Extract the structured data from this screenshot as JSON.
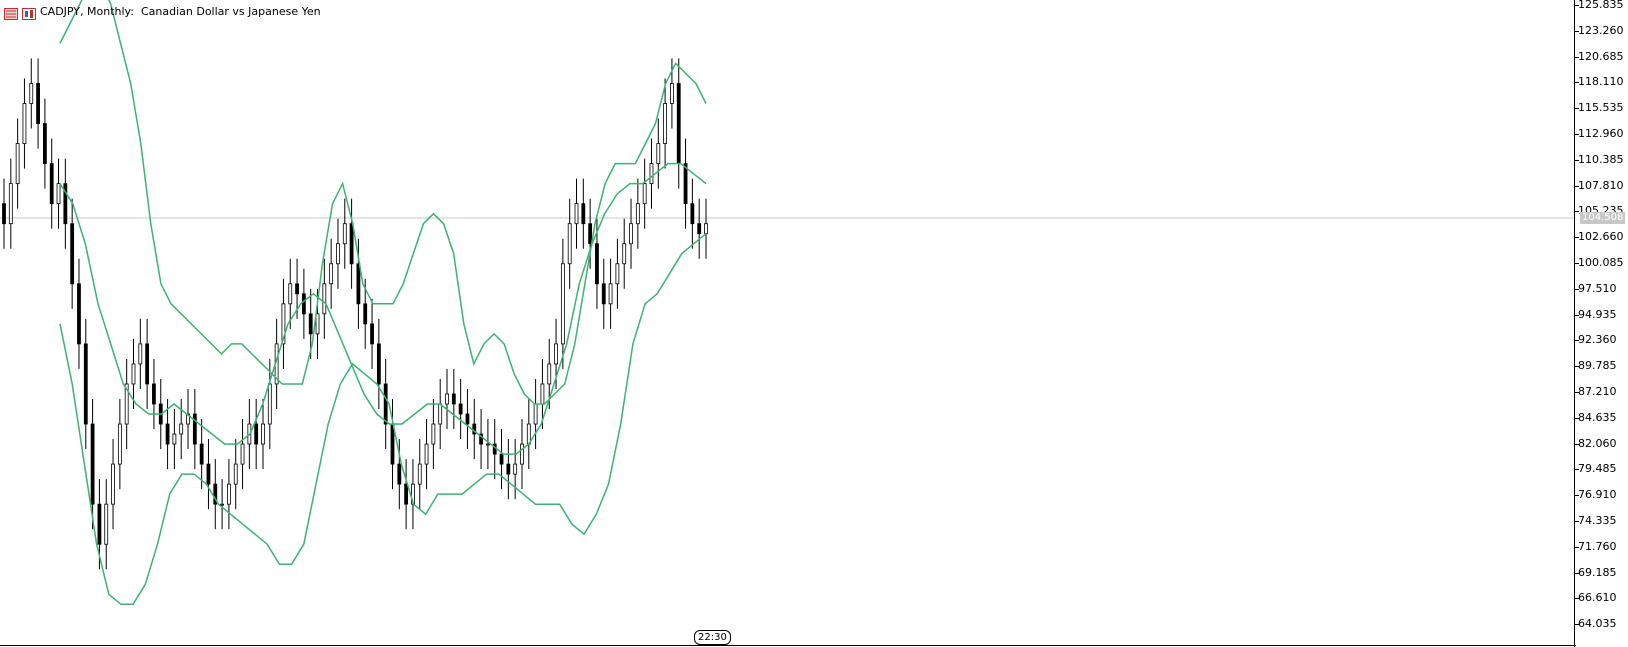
{
  "header": {
    "title": "CADJPY, Monthly:  Canadian Dollar vs Japanese Yen",
    "icons": [
      "data-window-icon",
      "chart-symbol-icon"
    ]
  },
  "price_axis": {
    "labels": [
      "125.835",
      "123.260",
      "120.685",
      "118.110",
      "115.535",
      "112.960",
      "110.385",
      "107.810",
      "105.235",
      "102.660",
      "100.085",
      "97.510",
      "94.935",
      "92.360",
      "89.785",
      "87.210",
      "84.635",
      "82.060",
      "79.485",
      "76.910",
      "74.335",
      "71.760",
      "69.185",
      "66.610",
      "64.035"
    ],
    "current_price": "104.508"
  },
  "time_marker": "22:30",
  "colors": {
    "background": "#ffffff",
    "candles": "#000000",
    "bands": "#3cb371",
    "current_line": "#c8c8c8"
  },
  "chart_data": {
    "type": "candlestick",
    "symbol": "CADJPY",
    "timeframe": "Monthly",
    "ylim": [
      64.035,
      125.835
    ],
    "indicator": "bollinger-bands",
    "close_series": [
      104,
      108,
      112,
      116,
      118,
      114,
      110,
      106,
      108,
      104,
      98,
      92,
      84,
      76,
      72,
      76,
      80,
      84,
      88,
      90,
      92,
      88,
      86,
      84,
      82,
      83,
      84,
      85,
      82,
      80,
      78,
      76,
      76,
      78,
      80,
      82,
      84,
      82,
      84,
      88,
      92,
      96,
      98,
      97,
      95,
      93,
      95,
      98,
      100,
      102,
      104,
      100,
      96,
      94,
      92,
      88,
      84,
      80,
      78,
      76,
      78,
      80,
      82,
      84,
      86,
      87,
      86,
      85,
      84,
      83,
      82,
      82,
      81,
      80,
      79,
      80,
      82,
      84,
      86,
      88,
      90,
      92,
      100,
      104,
      106,
      104,
      102,
      98,
      96,
      98,
      100,
      102,
      104,
      106,
      108,
      110,
      112,
      116,
      118,
      110,
      106,
      104,
      103,
      104
    ],
    "upper_band": [
      122,
      124,
      126,
      128,
      128,
      126,
      122,
      118,
      112,
      104,
      98,
      96,
      95,
      94,
      93,
      92,
      91,
      92,
      92,
      91,
      90,
      89,
      88,
      88,
      88,
      92,
      100,
      106,
      108,
      104,
      98,
      96,
      96,
      96,
      98,
      101,
      104,
      105,
      104,
      101,
      94,
      90,
      92,
      93,
      92,
      89,
      87,
      86,
      86,
      87,
      88,
      92,
      98,
      104,
      108,
      110,
      110,
      110,
      112,
      114,
      118,
      120,
      119,
      118,
      116
    ],
    "middle_band": [
      108,
      106,
      102,
      96,
      92,
      88,
      86,
      85,
      85,
      86,
      85,
      84,
      83,
      82,
      82,
      83,
      86,
      90,
      94,
      96,
      97,
      96,
      93,
      90,
      87,
      85,
      84,
      84,
      85,
      86,
      86,
      85,
      84,
      83,
      82,
      81,
      81,
      82,
      84,
      88,
      92,
      98,
      102,
      105,
      107,
      108,
      108,
      109,
      110,
      110,
      109,
      108
    ],
    "lower_band": [
      94,
      88,
      80,
      72,
      67,
      66,
      66,
      68,
      72,
      77,
      79,
      79,
      78,
      76,
      75,
      74,
      73,
      72,
      70,
      70,
      72,
      78,
      84,
      88,
      90,
      89,
      88,
      86,
      80,
      76,
      75,
      77,
      77,
      77,
      78,
      79,
      79,
      78,
      77,
      76,
      76,
      76,
      74,
      73,
      75,
      78,
      84,
      92,
      96,
      97,
      99,
      101,
      102,
      103
    ]
  }
}
